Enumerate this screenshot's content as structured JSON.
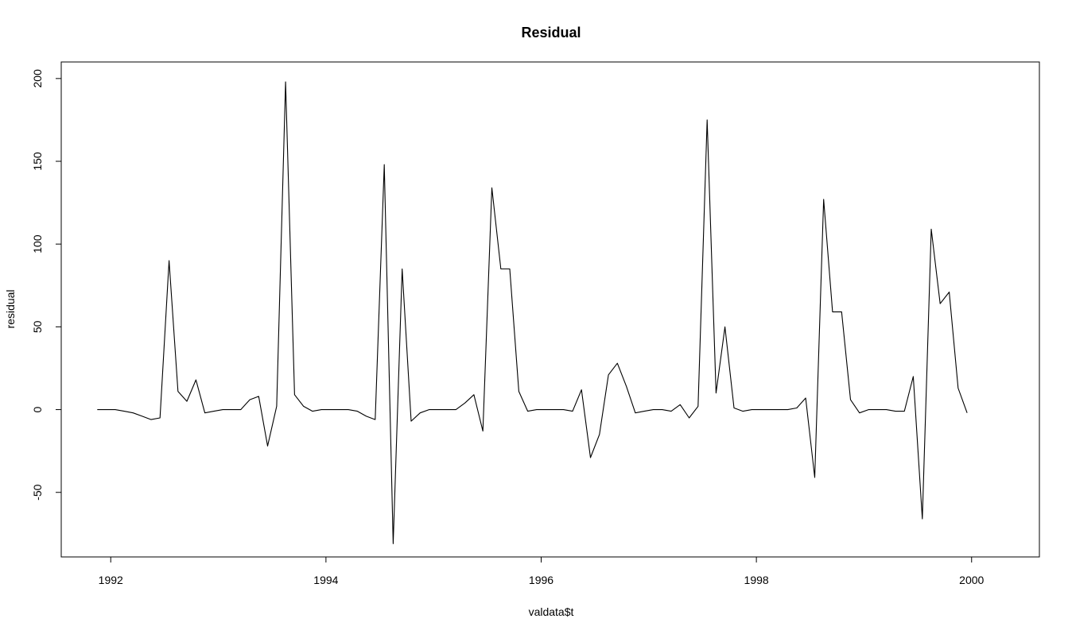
{
  "chart_data": {
    "type": "line",
    "title": "Residual",
    "xlabel": "valdata$t",
    "ylabel": "residual",
    "xlim": [
      1991.54,
      2000.63
    ],
    "ylim": [
      -89,
      210
    ],
    "xticks": [
      1992,
      1994,
      1996,
      1998,
      2000
    ],
    "xtick_labels": [
      "1992",
      "1994",
      "1996",
      "1998",
      "2000"
    ],
    "yticks": [
      -50,
      0,
      50,
      100,
      150,
      200
    ],
    "ytick_labels": [
      "-50",
      "0",
      "50",
      "100",
      "150",
      "200"
    ],
    "grid": false,
    "legend": "none",
    "line_color": "#000000",
    "series": [
      {
        "x": [
          1991.875,
          1991.958,
          1992.042,
          1992.125,
          1992.208,
          1992.292,
          1992.375,
          1992.458,
          1992.542,
          1992.625,
          1992.708,
          1992.792,
          1992.875,
          1992.958,
          1993.042,
          1993.125,
          1993.208,
          1993.292,
          1993.375,
          1993.458,
          1993.542,
          1993.625,
          1993.708,
          1993.792,
          1993.875,
          1993.958,
          1994.042,
          1994.125,
          1994.208,
          1994.292,
          1994.375,
          1994.458,
          1994.542,
          1994.625,
          1994.708,
          1994.792,
          1994.875,
          1994.958,
          1995.042,
          1995.125,
          1995.208,
          1995.292,
          1995.375,
          1995.458,
          1995.542,
          1995.625,
          1995.708,
          1995.792,
          1995.875,
          1995.958,
          1996.042,
          1996.125,
          1996.208,
          1996.292,
          1996.375,
          1996.458,
          1996.542,
          1996.625,
          1996.708,
          1996.792,
          1996.875,
          1996.958,
          1997.042,
          1997.125,
          1997.208,
          1997.292,
          1997.375,
          1997.458,
          1997.542,
          1997.625,
          1997.708,
          1997.792,
          1997.875,
          1997.958,
          1998.042,
          1998.125,
          1998.208,
          1998.292,
          1998.375,
          1998.458,
          1998.542,
          1998.625,
          1998.708,
          1998.792,
          1998.875,
          1998.958,
          1999.042,
          1999.125,
          1999.208,
          1999.292,
          1999.375,
          1999.458,
          1999.542,
          1999.625,
          1999.708,
          1999.792,
          1999.875,
          1999.958
        ],
        "y": [
          0,
          0,
          0,
          -1,
          -2,
          -4,
          -6,
          -5,
          90,
          11,
          5,
          18,
          -2,
          -1,
          0,
          0,
          0,
          6,
          8,
          -22,
          2,
          198,
          9,
          2,
          -1,
          0,
          0,
          0,
          0,
          -1,
          -4,
          -6,
          148,
          -81,
          85,
          -7,
          -2,
          0,
          0,
          0,
          0,
          4,
          9,
          -13,
          134,
          85,
          85,
          11,
          -1,
          0,
          0,
          0,
          0,
          -1,
          12,
          -29,
          -15,
          21,
          28,
          14,
          -2,
          -1,
          0,
          0,
          -1,
          3,
          -5,
          2,
          175,
          10,
          50,
          1,
          -1,
          0,
          0,
          0,
          0,
          0,
          1,
          7,
          -41,
          127,
          59,
          59,
          6,
          -2,
          0,
          0,
          0,
          -1,
          -1,
          20,
          -66,
          109,
          64,
          71,
          13,
          -2
        ]
      }
    ]
  }
}
